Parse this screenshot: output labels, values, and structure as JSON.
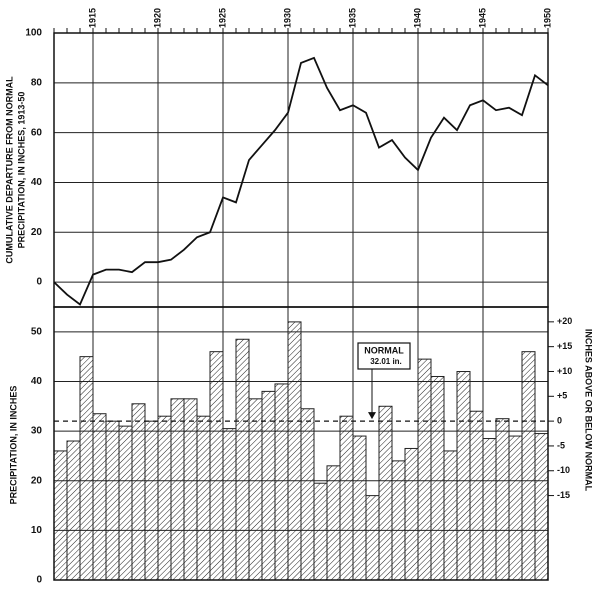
{
  "chart_data": [
    {
      "type": "line",
      "ylabel": "CUMULATIVE DEPARTURE FROM NORMAL",
      "ylabel2": "PRECIPITATION, IN INCHES, 1913-50",
      "x": [
        1912,
        1913,
        1914,
        1915,
        1916,
        1917,
        1918,
        1919,
        1920,
        1921,
        1922,
        1923,
        1924,
        1925,
        1926,
        1927,
        1928,
        1929,
        1930,
        1931,
        1932,
        1933,
        1934,
        1935,
        1936,
        1937,
        1938,
        1939,
        1940,
        1941,
        1942,
        1943,
        1944,
        1945,
        1946,
        1947,
        1948,
        1949,
        1950
      ],
      "values": [
        0,
        -5,
        -9,
        3,
        5,
        5,
        4,
        8,
        8,
        9,
        13,
        18,
        20,
        34,
        32,
        49,
        55,
        61,
        68,
        88,
        90,
        78,
        69,
        71,
        68,
        54,
        57,
        50,
        45,
        58,
        66,
        61,
        71,
        73,
        69,
        70,
        67,
        83,
        79
      ],
      "color": "#111111",
      "xlim": [
        1912,
        1950
      ],
      "xticks": [
        1915,
        1920,
        1925,
        1930,
        1935,
        1940,
        1945,
        1950
      ],
      "ylim": [
        -10,
        100
      ],
      "yticks": [
        0,
        20,
        40,
        60,
        80,
        100
      ],
      "grid": true
    },
    {
      "type": "bar",
      "ylabel": "PRECIPITATION, IN INCHES",
      "y2label": "INCHES ABOVE OR BELOW NORMAL",
      "x": [
        1913,
        1914,
        1915,
        1916,
        1917,
        1918,
        1919,
        1920,
        1921,
        1922,
        1923,
        1924,
        1925,
        1926,
        1927,
        1928,
        1929,
        1930,
        1931,
        1932,
        1933,
        1934,
        1935,
        1936,
        1937,
        1938,
        1939,
        1940,
        1941,
        1942,
        1943,
        1944,
        1945,
        1946,
        1947,
        1948,
        1949,
        1950
      ],
      "values": [
        26,
        28,
        45,
        33.5,
        32,
        31,
        35.5,
        32,
        33,
        36.5,
        36.5,
        33,
        46,
        30.5,
        48.5,
        36.5,
        38,
        39.5,
        52,
        34.5,
        19.5,
        23,
        33,
        29,
        17,
        35,
        24,
        26.5,
        44.5,
        41,
        26,
        42,
        34,
        28.5,
        32.5,
        29,
        46,
        29.5
      ],
      "color": "#222222",
      "normal": 32.01,
      "annotation": "NORMAL",
      "annotation2": "32.01 in.",
      "ylim": [
        0,
        55
      ],
      "yticks": [
        0,
        10,
        20,
        30,
        40,
        50
      ],
      "y2lim": [
        -32.01,
        22.99
      ],
      "y2ticks": [
        -15,
        -10,
        -5,
        0,
        {
          "value": 5,
          "label": "+5"
        },
        {
          "value": 10,
          "label": "+10"
        },
        {
          "value": 15,
          "label": "+15"
        },
        {
          "value": 20,
          "label": "+20"
        }
      ],
      "grid": true
    }
  ]
}
